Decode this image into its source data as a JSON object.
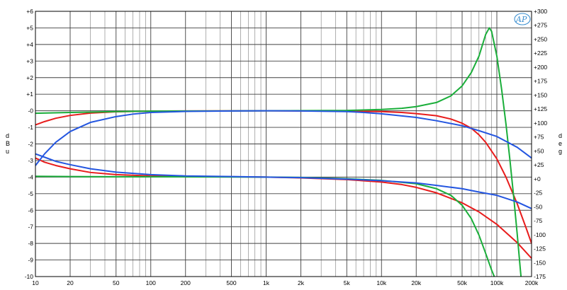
{
  "chart_data": {
    "type": "line",
    "x_scale": "log",
    "x_range": [
      10,
      200000
    ],
    "y_left_range": [
      -10,
      6
    ],
    "y_right_range": [
      -175,
      300
    ],
    "ylabel_left": "dBu",
    "ylabel_right": "deg",
    "grid": true,
    "x_ticks": [
      {
        "v": 10,
        "label": "10"
      },
      {
        "v": 20,
        "label": "20"
      },
      {
        "v": 50,
        "label": "50"
      },
      {
        "v": 100,
        "label": "100"
      },
      {
        "v": 200,
        "label": "200"
      },
      {
        "v": 500,
        "label": "500"
      },
      {
        "v": 1000,
        "label": "1k"
      },
      {
        "v": 2000,
        "label": "2k"
      },
      {
        "v": 5000,
        "label": "5k"
      },
      {
        "v": 10000,
        "label": "10k"
      },
      {
        "v": 20000,
        "label": "20k"
      },
      {
        "v": 50000,
        "label": "50k"
      },
      {
        "v": 100000,
        "label": "100k"
      },
      {
        "v": 200000,
        "label": "200k"
      }
    ],
    "y_left_ticks": [
      {
        "v": 6,
        "label": "+6"
      },
      {
        "v": 5,
        "label": "+5"
      },
      {
        "v": 4,
        "label": "+4"
      },
      {
        "v": 3,
        "label": "+3"
      },
      {
        "v": 2,
        "label": "+2"
      },
      {
        "v": 1,
        "label": "+1"
      },
      {
        "v": 0,
        "label": "-0"
      },
      {
        "v": -1,
        "label": "-1"
      },
      {
        "v": -2,
        "label": "-2"
      },
      {
        "v": -3,
        "label": "-3"
      },
      {
        "v": -4,
        "label": "-4"
      },
      {
        "v": -5,
        "label": "-5"
      },
      {
        "v": -6,
        "label": "-6"
      },
      {
        "v": -7,
        "label": "-7"
      },
      {
        "v": -8,
        "label": "-8"
      },
      {
        "v": -9,
        "label": "-9"
      },
      {
        "v": -10,
        "label": "-10"
      }
    ],
    "y_right_ticks": [
      {
        "v": 300,
        "label": "+300"
      },
      {
        "v": 275,
        "label": "+275"
      },
      {
        "v": 250,
        "label": "+250"
      },
      {
        "v": 225,
        "label": "+225"
      },
      {
        "v": 200,
        "label": "+200"
      },
      {
        "v": 175,
        "label": "+175"
      },
      {
        "v": 150,
        "label": "+150"
      },
      {
        "v": 125,
        "label": "+125"
      },
      {
        "v": 100,
        "label": "+100"
      },
      {
        "v": 75,
        "label": "+75"
      },
      {
        "v": 50,
        "label": "+50"
      },
      {
        "v": 25,
        "label": "+25"
      },
      {
        "v": 0,
        "label": "+0"
      },
      {
        "v": -25,
        "label": "-25"
      },
      {
        "v": -50,
        "label": "-50"
      },
      {
        "v": -75,
        "label": "-75"
      },
      {
        "v": -100,
        "label": "-100"
      },
      {
        "v": -125,
        "label": "-125"
      },
      {
        "v": -150,
        "label": "-150"
      },
      {
        "v": -175,
        "label": "-175"
      }
    ],
    "series": [
      {
        "color": "#e81c1c",
        "axis": "left",
        "points": [
          [
            10,
            -0.85
          ],
          [
            12,
            -0.65
          ],
          [
            15,
            -0.45
          ],
          [
            20,
            -0.28
          ],
          [
            30,
            -0.14
          ],
          [
            50,
            -0.06
          ],
          [
            100,
            -0.02
          ],
          [
            200,
            -0.01
          ],
          [
            1000,
            0
          ],
          [
            5000,
            -0.02
          ],
          [
            10000,
            -0.05
          ],
          [
            15000,
            -0.1
          ],
          [
            20000,
            -0.17
          ],
          [
            30000,
            -0.3
          ],
          [
            40000,
            -0.5
          ],
          [
            50000,
            -0.75
          ],
          [
            60000,
            -1.05
          ],
          [
            70000,
            -1.45
          ],
          [
            80000,
            -1.9
          ],
          [
            100000,
            -2.9
          ],
          [
            120000,
            -4.0
          ],
          [
            150000,
            -5.6
          ],
          [
            180000,
            -7.1
          ],
          [
            200000,
            -8.0
          ]
        ]
      },
      {
        "color": "#e81c1c",
        "axis": "left",
        "points": [
          [
            10,
            -2.85
          ],
          [
            12,
            -3.1
          ],
          [
            15,
            -3.3
          ],
          [
            20,
            -3.5
          ],
          [
            30,
            -3.72
          ],
          [
            50,
            -3.85
          ],
          [
            100,
            -3.93
          ],
          [
            200,
            -3.96
          ],
          [
            500,
            -3.98
          ],
          [
            1000,
            -4.0
          ],
          [
            2000,
            -4.05
          ],
          [
            5000,
            -4.15
          ],
          [
            10000,
            -4.3
          ],
          [
            15000,
            -4.45
          ],
          [
            20000,
            -4.62
          ],
          [
            30000,
            -4.95
          ],
          [
            50000,
            -5.55
          ],
          [
            70000,
            -6.1
          ],
          [
            100000,
            -6.85
          ],
          [
            150000,
            -7.95
          ],
          [
            200000,
            -8.9
          ]
        ]
      },
      {
        "color": "#1aae3a",
        "axis": "left",
        "points": [
          [
            10,
            -0.15
          ],
          [
            20,
            -0.1
          ],
          [
            50,
            -0.05
          ],
          [
            100,
            -0.02
          ],
          [
            1000,
            0
          ],
          [
            5000,
            0.02
          ],
          [
            10000,
            0.08
          ],
          [
            15000,
            0.15
          ],
          [
            20000,
            0.25
          ],
          [
            30000,
            0.5
          ],
          [
            40000,
            0.9
          ],
          [
            50000,
            1.5
          ],
          [
            60000,
            2.3
          ],
          [
            70000,
            3.3
          ],
          [
            80000,
            4.6
          ],
          [
            86000,
            5.0
          ],
          [
            90000,
            4.8
          ],
          [
            100000,
            3.3
          ],
          [
            110000,
            1.3
          ],
          [
            120000,
            -0.8
          ],
          [
            130000,
            -3.0
          ],
          [
            140000,
            -5.2
          ],
          [
            150000,
            -7.4
          ],
          [
            160000,
            -9.6
          ],
          [
            162000,
            -10.0
          ]
        ]
      },
      {
        "color": "#1aae3a",
        "axis": "left",
        "points": [
          [
            10,
            -3.95
          ],
          [
            20,
            -3.97
          ],
          [
            50,
            -3.98
          ],
          [
            100,
            -3.98
          ],
          [
            1000,
            -4.0
          ],
          [
            2000,
            -4.02
          ],
          [
            5000,
            -4.1
          ],
          [
            10000,
            -4.2
          ],
          [
            20000,
            -4.4
          ],
          [
            30000,
            -4.7
          ],
          [
            40000,
            -5.1
          ],
          [
            50000,
            -5.7
          ],
          [
            60000,
            -6.5
          ],
          [
            70000,
            -7.5
          ],
          [
            80000,
            -8.6
          ],
          [
            90000,
            -9.6
          ],
          [
            95000,
            -10.0
          ]
        ]
      },
      {
        "color": "#2456e0",
        "axis": "left",
        "points": [
          [
            10,
            -3.3
          ],
          [
            12,
            -2.6
          ],
          [
            15,
            -1.9
          ],
          [
            20,
            -1.25
          ],
          [
            30,
            -0.7
          ],
          [
            50,
            -0.35
          ],
          [
            70,
            -0.2
          ],
          [
            100,
            -0.1
          ],
          [
            200,
            -0.04
          ],
          [
            500,
            -0.01
          ],
          [
            1000,
            0
          ],
          [
            2000,
            -0.01
          ],
          [
            5000,
            -0.05
          ],
          [
            7000,
            -0.1
          ],
          [
            10000,
            -0.18
          ],
          [
            20000,
            -0.4
          ],
          [
            30000,
            -0.6
          ],
          [
            50000,
            -0.9
          ],
          [
            70000,
            -1.2
          ],
          [
            100000,
            -1.55
          ],
          [
            150000,
            -2.2
          ],
          [
            200000,
            -2.85
          ]
        ]
      },
      {
        "color": "#2456e0",
        "axis": "left",
        "points": [
          [
            10,
            -2.6
          ],
          [
            12,
            -2.8
          ],
          [
            15,
            -3.05
          ],
          [
            20,
            -3.25
          ],
          [
            30,
            -3.5
          ],
          [
            50,
            -3.7
          ],
          [
            100,
            -3.85
          ],
          [
            200,
            -3.93
          ],
          [
            500,
            -3.97
          ],
          [
            1000,
            -4.0
          ],
          [
            2000,
            -4.03
          ],
          [
            5000,
            -4.12
          ],
          [
            10000,
            -4.22
          ],
          [
            20000,
            -4.35
          ],
          [
            30000,
            -4.5
          ],
          [
            50000,
            -4.7
          ],
          [
            70000,
            -4.9
          ],
          [
            100000,
            -5.1
          ],
          [
            150000,
            -5.5
          ],
          [
            200000,
            -5.9
          ]
        ]
      }
    ]
  },
  "logo": {
    "text": "AP",
    "color": "#3b8fd0"
  }
}
